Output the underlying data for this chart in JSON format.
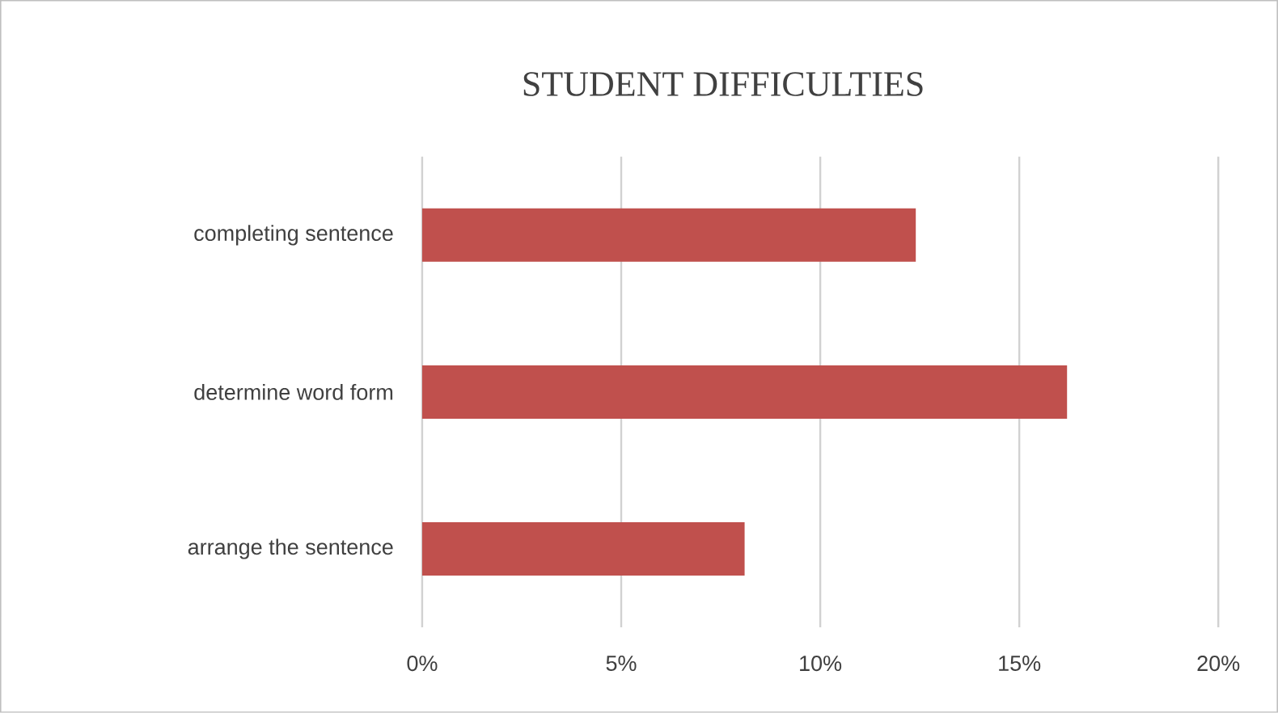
{
  "chart_data": {
    "type": "bar",
    "orientation": "horizontal",
    "title": "STUDENT DIFFICULTIES",
    "categories": [
      "completing sentence",
      "determine word form",
      "arrange the sentence"
    ],
    "values": [
      12.4,
      16.2,
      8.1
    ],
    "color": "#c0504d",
    "xlim": [
      0,
      20
    ],
    "xticks": [
      {
        "value": 0,
        "label": "0%"
      },
      {
        "value": 5,
        "label": "5%"
      },
      {
        "value": 10,
        "label": "10%"
      },
      {
        "value": 15,
        "label": "15%"
      },
      {
        "value": 20,
        "label": "20%"
      }
    ],
    "grid": "x"
  }
}
